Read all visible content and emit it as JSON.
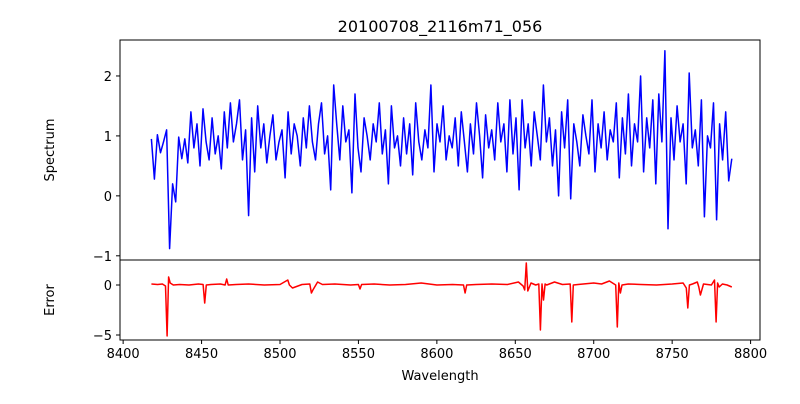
{
  "chart_data": [
    {
      "type": "line",
      "title": "20100708_2116m71_056",
      "xlabel": "",
      "ylabel": "Spectrum",
      "xlim": [
        8398,
        8806
      ],
      "ylim": [
        -1.07,
        2.6
      ],
      "yticks": [
        2,
        1,
        0,
        -1
      ],
      "ytick_labels": [
        "2",
        "1",
        "0",
        "−1"
      ],
      "color": "#0000ff",
      "series": [
        {
          "name": "Spectrum",
          "x_start": 8418,
          "x_end": 8788,
          "values": [
            0.95,
            0.28,
            1.02,
            0.72,
            0.9,
            1.1,
            -0.88,
            0.2,
            -0.1,
            0.98,
            0.62,
            0.95,
            0.55,
            1.4,
            0.8,
            1.2,
            0.5,
            1.45,
            0.9,
            0.6,
            1.3,
            0.7,
            1.0,
            0.45,
            1.4,
            0.8,
            1.55,
            0.9,
            1.2,
            1.6,
            0.6,
            1.1,
            -0.33,
            1.3,
            0.4,
            1.5,
            0.8,
            1.2,
            0.55,
            1.0,
            1.35,
            0.6,
            0.9,
            1.1,
            0.3,
            1.4,
            0.7,
            1.2,
            1.0,
            0.5,
            1.3,
            0.8,
            1.5,
            0.9,
            0.6,
            1.2,
            1.55,
            0.7,
            1.0,
            0.1,
            1.85,
            1.2,
            0.6,
            1.5,
            0.9,
            1.1,
            0.05,
            1.7,
            0.8,
            0.4,
            1.3,
            1.0,
            0.6,
            1.2,
            0.9,
            1.55,
            0.7,
            1.1,
            0.2,
            1.5,
            0.8,
            1.0,
            0.5,
            1.3,
            0.7,
            1.2,
            0.35,
            1.55,
            0.9,
            0.6,
            1.1,
            0.8,
            1.85,
            0.4,
            1.2,
            0.9,
            1.5,
            0.6,
            1.0,
            0.8,
            1.3,
            0.5,
            1.4,
            0.9,
            0.4,
            1.2,
            0.7,
            1.55,
            1.0,
            0.3,
            1.35,
            0.8,
            1.1,
            0.6,
            1.55,
            0.9,
            1.2,
            0.4,
            1.6,
            0.7,
            1.3,
            0.1,
            1.6,
            0.8,
            1.2,
            0.5,
            1.4,
            1.0,
            0.6,
            1.85,
            0.9,
            1.3,
            0.5,
            1.1,
            0.0,
            1.4,
            0.8,
            1.6,
            -0.05,
            1.2,
            0.9,
            0.5,
            1.35,
            1.0,
            0.7,
            1.6,
            0.4,
            1.2,
            0.8,
            1.4,
            0.6,
            1.1,
            0.9,
            1.55,
            0.3,
            1.3,
            0.7,
            1.7,
            0.5,
            1.2,
            0.9,
            2.0,
            0.4,
            1.3,
            0.8,
            1.6,
            0.2,
            1.7,
            0.9,
            2.42,
            -0.55,
            1.3,
            0.6,
            1.5,
            0.9,
            1.2,
            0.2,
            2.05,
            0.8,
            1.1,
            0.5,
            1.6,
            -0.35,
            1.0,
            0.8,
            1.55,
            -0.4,
            1.2,
            0.6,
            1.4,
            0.25,
            0.62
          ]
        }
      ]
    },
    {
      "type": "line",
      "xlabel": "Wavelength",
      "ylabel": "Error",
      "xlim": [
        8398,
        8806
      ],
      "ylim": [
        -5.5,
        2.5
      ],
      "yticks": [
        0,
        -5
      ],
      "ytick_labels": [
        "0",
        "−5"
      ],
      "xticks": [
        8400,
        8450,
        8500,
        8550,
        8600,
        8650,
        8700,
        8750,
        8800
      ],
      "xtick_labels": [
        "8400",
        "8450",
        "8500",
        "8550",
        "8600",
        "8650",
        "8700",
        "8750",
        "8800"
      ],
      "color": "#ff0000",
      "series": [
        {
          "name": "Error",
          "x": [
            8418,
            8422,
            8425,
            8427,
            8428,
            8429,
            8430,
            8432,
            8436,
            8442,
            8448,
            8451,
            8452,
            8453,
            8456,
            8462,
            8465,
            8466,
            8467,
            8472,
            8480,
            8490,
            8500,
            8505,
            8506,
            8508,
            8514,
            8519,
            8520,
            8521,
            8524,
            8527,
            8535,
            8545,
            8550,
            8551,
            8552,
            8560,
            8570,
            8580,
            8590,
            8600,
            8610,
            8617,
            8618,
            8619,
            8625,
            8635,
            8645,
            8652,
            8655,
            8656,
            8657,
            8658,
            8660,
            8663,
            8665,
            8666,
            8667,
            8668,
            8669,
            8670,
            8675,
            8680,
            8685,
            8686,
            8687,
            8690,
            8700,
            8705,
            8710,
            8714,
            8715,
            8716,
            8717,
            8718,
            8722,
            8730,
            8740,
            8750,
            8757,
            8759,
            8760,
            8761,
            8763,
            8766,
            8767,
            8768,
            8770,
            8775,
            8777,
            8778,
            8779,
            8780,
            8782,
            8785,
            8788
          ],
          "values": [
            0.1,
            0.05,
            0.1,
            -0.1,
            -5.1,
            0.8,
            0.2,
            0.0,
            0.05,
            0.0,
            0.1,
            0.05,
            -1.8,
            0.0,
            0.05,
            0.1,
            0.0,
            0.6,
            0.0,
            0.05,
            0.1,
            0.0,
            0.05,
            0.5,
            0.0,
            -0.3,
            0.05,
            0.1,
            -0.8,
            -0.5,
            0.3,
            0.05,
            0.1,
            0.0,
            0.05,
            -0.4,
            0.05,
            0.1,
            0.0,
            0.05,
            0.2,
            0.0,
            0.05,
            0.0,
            -0.8,
            0.0,
            0.05,
            0.1,
            0.05,
            0.3,
            -0.1,
            -0.5,
            2.2,
            -0.6,
            0.2,
            0.0,
            0.1,
            -4.5,
            0.1,
            -1.5,
            0.1,
            0.0,
            0.3,
            0.05,
            0.1,
            -3.7,
            0.0,
            0.05,
            0.2,
            0.1,
            0.4,
            0.0,
            -4.2,
            0.2,
            -0.8,
            0.0,
            0.1,
            0.05,
            0.0,
            0.1,
            0.2,
            -0.3,
            -2.3,
            0.0,
            0.1,
            0.3,
            -0.2,
            -1.0,
            0.1,
            0.0,
            0.5,
            -3.7,
            0.2,
            -0.2,
            0.1,
            0.0,
            -0.2
          ]
        }
      ]
    }
  ]
}
